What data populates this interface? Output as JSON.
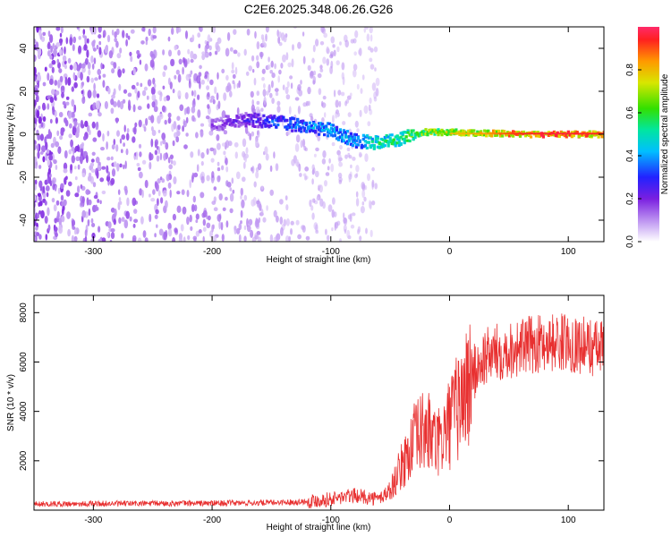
{
  "title": "C2E6.2025.348.06.26.G26",
  "colors": {
    "frame": "#000000",
    "snr_line": "#e83030",
    "spectrogram_low": "#7a22e6",
    "spectrogram_high": "#ff2020"
  },
  "chart_data": [
    {
      "id": "spectrogram",
      "type": "heatmap",
      "title": "",
      "xlabel": "Height of straight line (km)",
      "ylabel": "Frequency (Hz)",
      "xlim": [
        -350,
        130
      ],
      "ylim": [
        -50,
        50
      ],
      "xticks": [
        -300,
        -200,
        -100,
        0,
        100
      ],
      "yticks": [
        -40,
        -20,
        0,
        20,
        40
      ],
      "colorbar": {
        "label": "Normalized spectral amplitude",
        "colormap": "rainbow",
        "range": [
          0.0,
          1.0
        ],
        "ticks": [
          0.0,
          0.2,
          0.4,
          0.6,
          0.8
        ]
      },
      "features": [
        {
          "name": "diffuse noise",
          "x_range": [
            -350,
            -60
          ],
          "freq_range": [
            -50,
            50
          ],
          "amplitude_range": [
            0.05,
            0.2
          ]
        },
        {
          "name": "signal track",
          "points": [
            {
              "x": -200,
              "freq": 4,
              "amplitude": 0.22
            },
            {
              "x": -175,
              "freq": 7,
              "amplitude": 0.25
            },
            {
              "x": -150,
              "freq": 6,
              "amplitude": 0.35
            },
            {
              "x": -125,
              "freq": 4,
              "amplitude": 0.4
            },
            {
              "x": -100,
              "freq": 2,
              "amplitude": 0.45
            },
            {
              "x": -80,
              "freq": -3,
              "amplitude": 0.45
            },
            {
              "x": -60,
              "freq": -4,
              "amplitude": 0.55
            },
            {
              "x": -40,
              "freq": -2,
              "amplitude": 0.6
            },
            {
              "x": -20,
              "freq": 1,
              "amplitude": 0.7
            },
            {
              "x": 0,
              "freq": 1,
              "amplitude": 0.75
            },
            {
              "x": 30,
              "freq": 0.5,
              "amplitude": 0.8
            },
            {
              "x": 60,
              "freq": 0,
              "amplitude": 0.9
            },
            {
              "x": 90,
              "freq": 0,
              "amplitude": 0.92
            },
            {
              "x": 130,
              "freq": 0,
              "amplitude": 0.9
            }
          ]
        }
      ]
    },
    {
      "id": "snr",
      "type": "line",
      "title": "",
      "xlabel": "Height of straight line (km)",
      "ylabel": "SNR (10 * v/v)",
      "xlim": [
        -350,
        130
      ],
      "ylim": [
        0,
        8700
      ],
      "xticks": [
        -300,
        -200,
        -100,
        0,
        100
      ],
      "yticks": [
        2000,
        4000,
        6000,
        8000
      ],
      "series": [
        {
          "name": "SNR",
          "x": [
            -350,
            -300,
            -250,
            -200,
            -150,
            -120,
            -100,
            -80,
            -60,
            -50,
            -40,
            -30,
            -20,
            -10,
            0,
            10,
            20,
            30,
            40,
            60,
            80,
            100,
            130
          ],
          "y": [
            250,
            260,
            270,
            280,
            300,
            350,
            450,
            600,
            450,
            800,
            1800,
            2800,
            3300,
            2600,
            3500,
            4500,
            5500,
            6200,
            6400,
            6600,
            6800,
            6800,
            6500
          ]
        }
      ]
    }
  ]
}
